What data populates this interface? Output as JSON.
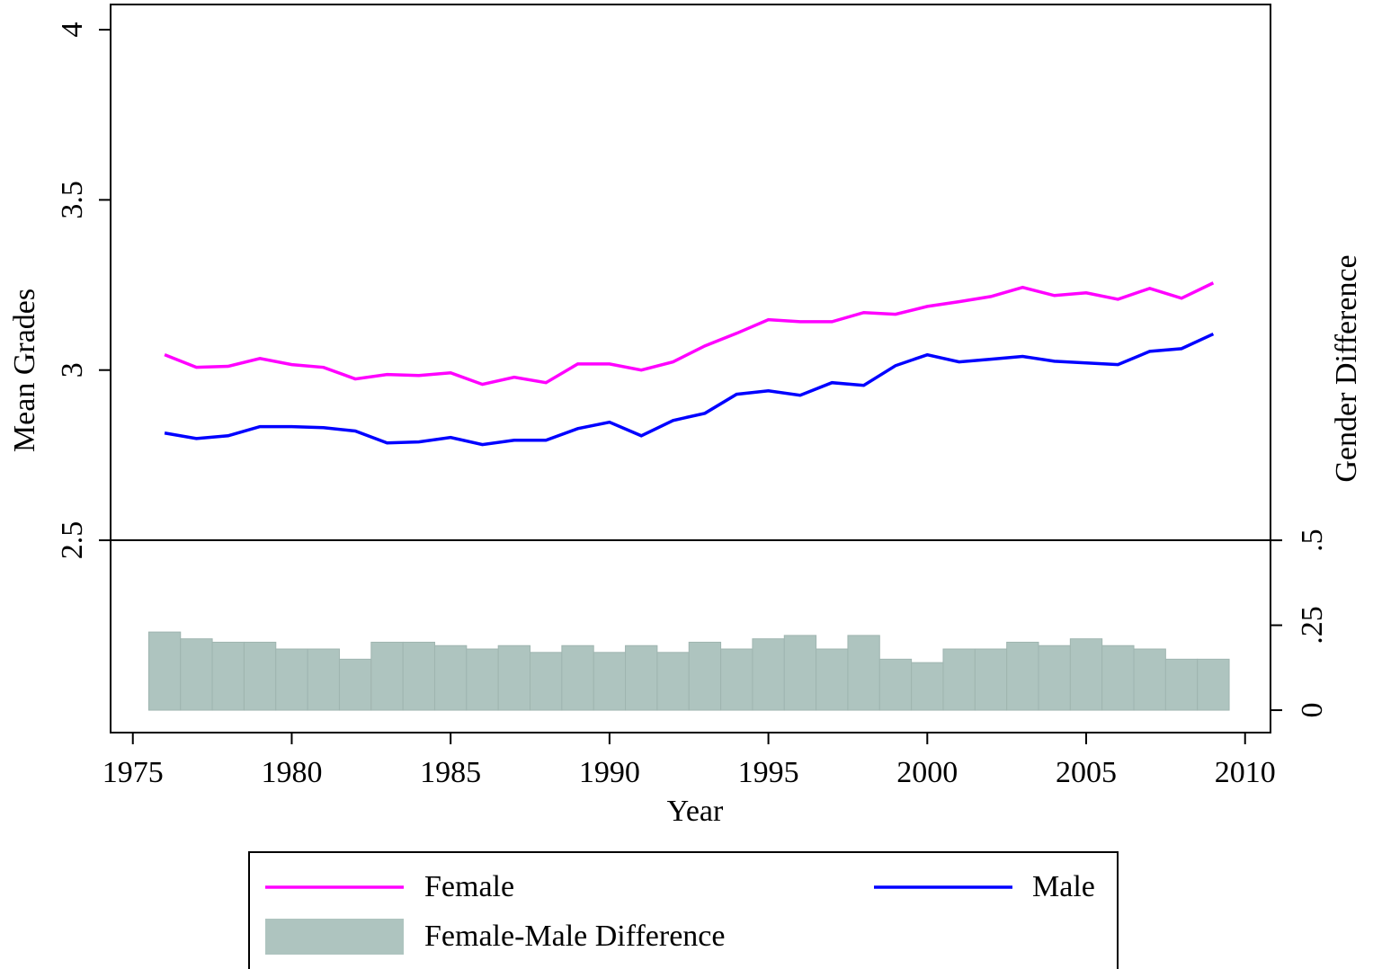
{
  "chart_data": {
    "type": "line",
    "x_label": "Year",
    "y_label": "Mean Grades",
    "y2_label": "Gender Difference",
    "x": [
      1976,
      1977,
      1978,
      1979,
      1980,
      1981,
      1982,
      1983,
      1984,
      1985,
      1986,
      1987,
      1988,
      1989,
      1990,
      1991,
      1992,
      1993,
      1994,
      1995,
      1996,
      1997,
      1998,
      1999,
      2000,
      2001,
      2002,
      2003,
      2004,
      2005,
      2006,
      2007,
      2008,
      2009
    ],
    "series": [
      {
        "name": "Female",
        "type": "line",
        "color": "#ff00ff",
        "values": [
          3.045,
          3.008,
          3.011,
          3.034,
          3.016,
          3.008,
          2.974,
          2.987,
          2.984,
          2.992,
          2.958,
          2.979,
          2.963,
          3.018,
          3.018,
          3.0,
          3.024,
          3.071,
          3.108,
          3.148,
          3.142,
          3.142,
          3.169,
          3.164,
          3.187,
          3.201,
          3.216,
          3.243,
          3.219,
          3.227,
          3.208,
          3.24,
          3.211,
          3.256
        ]
      },
      {
        "name": "Male",
        "type": "line",
        "color": "#0000ff",
        "values": [
          2.815,
          2.799,
          2.807,
          2.834,
          2.834,
          2.831,
          2.821,
          2.786,
          2.789,
          2.802,
          2.781,
          2.794,
          2.794,
          2.828,
          2.847,
          2.807,
          2.852,
          2.873,
          2.929,
          2.939,
          2.926,
          2.963,
          2.955,
          3.013,
          3.045,
          3.024,
          3.032,
          3.04,
          3.026,
          3.021,
          3.016,
          3.055,
          3.063,
          3.106
        ]
      },
      {
        "name": "Female-Male Difference",
        "type": "bar",
        "axis": "y2",
        "color": "#aec4bf",
        "values": [
          0.23,
          0.21,
          0.2,
          0.2,
          0.18,
          0.18,
          0.15,
          0.2,
          0.2,
          0.19,
          0.18,
          0.19,
          0.17,
          0.19,
          0.17,
          0.19,
          0.17,
          0.2,
          0.18,
          0.21,
          0.22,
          0.18,
          0.22,
          0.15,
          0.14,
          0.18,
          0.18,
          0.2,
          0.19,
          0.21,
          0.19,
          0.18,
          0.15,
          0.15
        ]
      }
    ],
    "xlim": [
      1974.3,
      2010.8
    ],
    "xticks": [
      1975,
      1980,
      1985,
      1990,
      1995,
      2000,
      2005,
      2010
    ],
    "ylim": [
      1.935,
      4.074
    ],
    "yticks": [
      2.5,
      3,
      3.5,
      4
    ],
    "y2lim": [
      -0.066,
      2.077
    ],
    "y2ticks": [
      0,
      {
        "value": 0.25,
        "label": ".25"
      },
      {
        "value": 0.5,
        "label": ".5"
      }
    ]
  }
}
